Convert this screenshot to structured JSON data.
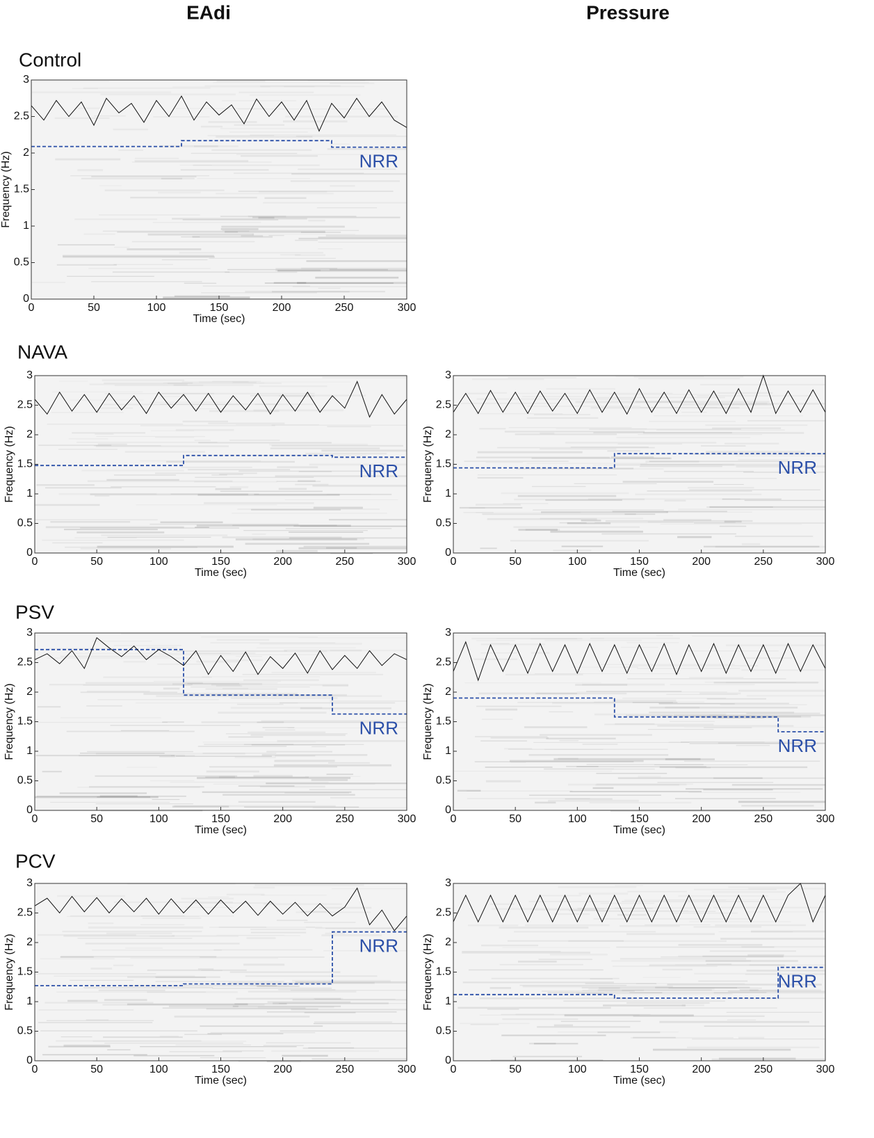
{
  "columns": [
    "EAdi",
    "Pressure"
  ],
  "rows": [
    "Control",
    "NAVA",
    "PSV",
    "PCV"
  ],
  "chart_data": [
    {
      "type": "line",
      "xlabel": "Time (sec)",
      "ylabel": "Frequency (Hz)",
      "annotation": "NRR",
      "xlim": [
        0,
        300
      ],
      "ylim": [
        0,
        3
      ],
      "xticks": [
        0,
        50,
        100,
        150,
        200,
        250,
        300
      ],
      "yticks": [
        0,
        0.5,
        1,
        1.5,
        2,
        2.5,
        3
      ],
      "series": [
        {
          "color": "#2b4fa8",
          "dashed": true,
          "x": [
            0,
            120,
            120,
            240,
            240,
            300
          ],
          "values": [
            2.09,
            2.09,
            2.17,
            2.17,
            2.08,
            2.08
          ]
        },
        {
          "color": "#111111",
          "dashed": false,
          "x": [
            0,
            10,
            20,
            30,
            40,
            50,
            60,
            70,
            80,
            90,
            100,
            110,
            120,
            130,
            140,
            150,
            160,
            170,
            180,
            190,
            200,
            210,
            220,
            230,
            240,
            250,
            260,
            270,
            280,
            290,
            300
          ],
          "values": [
            2.65,
            2.45,
            2.72,
            2.5,
            2.7,
            2.38,
            2.75,
            2.55,
            2.68,
            2.42,
            2.72,
            2.5,
            2.78,
            2.45,
            2.7,
            2.52,
            2.66,
            2.4,
            2.74,
            2.5,
            2.7,
            2.45,
            2.72,
            2.3,
            2.68,
            2.48,
            2.75,
            2.5,
            2.7,
            2.45,
            2.35
          ]
        }
      ]
    },
    {
      "type": "line",
      "xlabel": "Time (sec)",
      "ylabel": "Frequency (Hz)",
      "annotation": "NRR",
      "xlim": [
        0,
        300
      ],
      "ylim": [
        0,
        3
      ],
      "xticks": [
        0,
        50,
        100,
        150,
        200,
        250,
        300
      ],
      "yticks": [
        0,
        0.5,
        1,
        1.5,
        2,
        2.5,
        3
      ],
      "series": [
        {
          "color": "#2b4fa8",
          "dashed": true,
          "x": [
            0,
            120,
            120,
            240,
            240,
            300
          ],
          "values": [
            1.48,
            1.48,
            1.65,
            1.65,
            1.62,
            1.62
          ]
        },
        {
          "color": "#111111",
          "dashed": false,
          "x": [
            0,
            10,
            20,
            30,
            40,
            50,
            60,
            70,
            80,
            90,
            100,
            110,
            120,
            130,
            140,
            150,
            160,
            170,
            180,
            190,
            200,
            210,
            220,
            230,
            240,
            250,
            260,
            270,
            280,
            290,
            300
          ],
          "values": [
            2.6,
            2.35,
            2.72,
            2.4,
            2.68,
            2.38,
            2.7,
            2.42,
            2.66,
            2.36,
            2.72,
            2.45,
            2.68,
            2.4,
            2.7,
            2.38,
            2.66,
            2.42,
            2.7,
            2.35,
            2.68,
            2.4,
            2.72,
            2.38,
            2.66,
            2.45,
            2.9,
            2.3,
            2.68,
            2.35,
            2.6
          ]
        }
      ]
    },
    {
      "type": "line",
      "xlabel": "Time (sec)",
      "ylabel": "Frequency (Hz)",
      "annotation": "NRR",
      "xlim": [
        0,
        300
      ],
      "ylim": [
        0,
        3
      ],
      "xticks": [
        0,
        50,
        100,
        150,
        200,
        250,
        300
      ],
      "yticks": [
        0,
        0.5,
        1,
        1.5,
        2,
        2.5,
        3
      ],
      "series": [
        {
          "color": "#2b4fa8",
          "dashed": true,
          "x": [
            0,
            130,
            130,
            300
          ],
          "values": [
            1.44,
            1.44,
            1.68,
            1.68
          ]
        },
        {
          "color": "#111111",
          "dashed": false,
          "x": [
            0,
            10,
            20,
            30,
            40,
            50,
            60,
            70,
            80,
            90,
            100,
            110,
            120,
            130,
            140,
            150,
            160,
            170,
            180,
            190,
            200,
            210,
            220,
            230,
            240,
            250,
            260,
            270,
            280,
            290,
            300
          ],
          "values": [
            2.38,
            2.7,
            2.36,
            2.75,
            2.38,
            2.72,
            2.36,
            2.74,
            2.4,
            2.7,
            2.36,
            2.76,
            2.38,
            2.72,
            2.35,
            2.78,
            2.38,
            2.72,
            2.36,
            2.76,
            2.38,
            2.74,
            2.36,
            2.78,
            2.38,
            3.0,
            2.36,
            2.74,
            2.38,
            2.76,
            2.38
          ]
        }
      ]
    },
    {
      "type": "line",
      "xlabel": "Time (sec)",
      "ylabel": "Frequency (Hz)",
      "annotation": "NRR",
      "xlim": [
        0,
        300
      ],
      "ylim": [
        0,
        3
      ],
      "xticks": [
        0,
        50,
        100,
        150,
        200,
        250,
        300
      ],
      "yticks": [
        0,
        0.5,
        1,
        1.5,
        2,
        2.5,
        3
      ],
      "series": [
        {
          "color": "#2b4fa8",
          "dashed": true,
          "x": [
            0,
            120,
            120,
            240,
            240,
            300
          ],
          "values": [
            2.72,
            2.72,
            1.95,
            1.95,
            1.63,
            1.63
          ]
        },
        {
          "color": "#111111",
          "dashed": false,
          "x": [
            0,
            10,
            20,
            30,
            40,
            50,
            60,
            70,
            80,
            90,
            100,
            110,
            120,
            130,
            140,
            150,
            160,
            170,
            180,
            190,
            200,
            210,
            220,
            230,
            240,
            250,
            260,
            270,
            280,
            290,
            300
          ],
          "values": [
            2.55,
            2.65,
            2.48,
            2.7,
            2.4,
            2.92,
            2.75,
            2.6,
            2.78,
            2.55,
            2.72,
            2.6,
            2.45,
            2.7,
            2.3,
            2.62,
            2.35,
            2.68,
            2.3,
            2.6,
            2.4,
            2.66,
            2.32,
            2.7,
            2.38,
            2.62,
            2.4,
            2.7,
            2.45,
            2.65,
            2.55
          ]
        }
      ]
    },
    {
      "type": "line",
      "xlabel": "Time (sec)",
      "ylabel": "Frequency (Hz)",
      "annotation": "NRR",
      "xlim": [
        0,
        300
      ],
      "ylim": [
        0,
        3
      ],
      "xticks": [
        0,
        50,
        100,
        150,
        200,
        250,
        300
      ],
      "yticks": [
        0,
        0.5,
        1,
        1.5,
        2,
        2.5,
        3
      ],
      "series": [
        {
          "color": "#2b4fa8",
          "dashed": true,
          "x": [
            0,
            130,
            130,
            262,
            262,
            300
          ],
          "values": [
            1.9,
            1.9,
            1.58,
            1.58,
            1.33,
            1.33
          ]
        },
        {
          "color": "#111111",
          "dashed": false,
          "x": [
            0,
            10,
            20,
            30,
            40,
            50,
            60,
            70,
            80,
            90,
            100,
            110,
            120,
            130,
            140,
            150,
            160,
            170,
            180,
            190,
            200,
            210,
            220,
            230,
            240,
            250,
            260,
            270,
            280,
            290,
            300
          ],
          "values": [
            2.35,
            2.85,
            2.2,
            2.8,
            2.35,
            2.8,
            2.32,
            2.82,
            2.35,
            2.8,
            2.32,
            2.82,
            2.35,
            2.8,
            2.32,
            2.8,
            2.35,
            2.82,
            2.3,
            2.8,
            2.35,
            2.82,
            2.32,
            2.8,
            2.35,
            2.8,
            2.32,
            2.82,
            2.35,
            2.8,
            2.4
          ]
        }
      ]
    },
    {
      "type": "line",
      "xlabel": "Time (sec)",
      "ylabel": "Frequency (Hz)",
      "annotation": "NRR",
      "xlim": [
        0,
        300
      ],
      "ylim": [
        0,
        3
      ],
      "xticks": [
        0,
        50,
        100,
        150,
        200,
        250,
        300
      ],
      "yticks": [
        0,
        0.5,
        1,
        1.5,
        2,
        2.5,
        3
      ],
      "series": [
        {
          "color": "#2b4fa8",
          "dashed": true,
          "x": [
            0,
            120,
            120,
            240,
            240,
            300
          ],
          "values": [
            1.27,
            1.27,
            1.3,
            1.3,
            2.18,
            2.18
          ]
        },
        {
          "color": "#111111",
          "dashed": false,
          "x": [
            0,
            10,
            20,
            30,
            40,
            50,
            60,
            70,
            80,
            90,
            100,
            110,
            120,
            130,
            140,
            150,
            160,
            170,
            180,
            190,
            200,
            210,
            220,
            230,
            240,
            250,
            260,
            270,
            280,
            290,
            300
          ],
          "values": [
            2.62,
            2.75,
            2.5,
            2.78,
            2.52,
            2.76,
            2.5,
            2.74,
            2.52,
            2.75,
            2.48,
            2.74,
            2.5,
            2.72,
            2.48,
            2.72,
            2.5,
            2.7,
            2.46,
            2.7,
            2.48,
            2.68,
            2.45,
            2.66,
            2.45,
            2.6,
            2.92,
            2.3,
            2.55,
            2.2,
            2.45
          ]
        }
      ]
    },
    {
      "type": "line",
      "xlabel": "Time (sec)",
      "ylabel": "Frequency (Hz)",
      "annotation": "NRR",
      "xlim": [
        0,
        300
      ],
      "ylim": [
        0,
        3
      ],
      "xticks": [
        0,
        50,
        100,
        150,
        200,
        250,
        300
      ],
      "yticks": [
        0,
        0.5,
        1,
        1.5,
        2,
        2.5,
        3
      ],
      "series": [
        {
          "color": "#2b4fa8",
          "dashed": true,
          "x": [
            0,
            130,
            130,
            262,
            262,
            300
          ],
          "values": [
            1.12,
            1.12,
            1.06,
            1.06,
            1.58,
            1.58
          ]
        },
        {
          "color": "#111111",
          "dashed": false,
          "x": [
            0,
            10,
            20,
            30,
            40,
            50,
            60,
            70,
            80,
            90,
            100,
            110,
            120,
            130,
            140,
            150,
            160,
            170,
            180,
            190,
            200,
            210,
            220,
            230,
            240,
            250,
            260,
            270,
            280,
            290,
            300
          ],
          "values": [
            2.35,
            2.8,
            2.35,
            2.8,
            2.35,
            2.8,
            2.35,
            2.8,
            2.35,
            2.8,
            2.35,
            2.8,
            2.35,
            2.8,
            2.35,
            2.8,
            2.35,
            2.8,
            2.35,
            2.8,
            2.35,
            2.8,
            2.35,
            2.8,
            2.35,
            2.8,
            2.35,
            2.8,
            3.0,
            2.35,
            2.8
          ]
        }
      ]
    }
  ]
}
